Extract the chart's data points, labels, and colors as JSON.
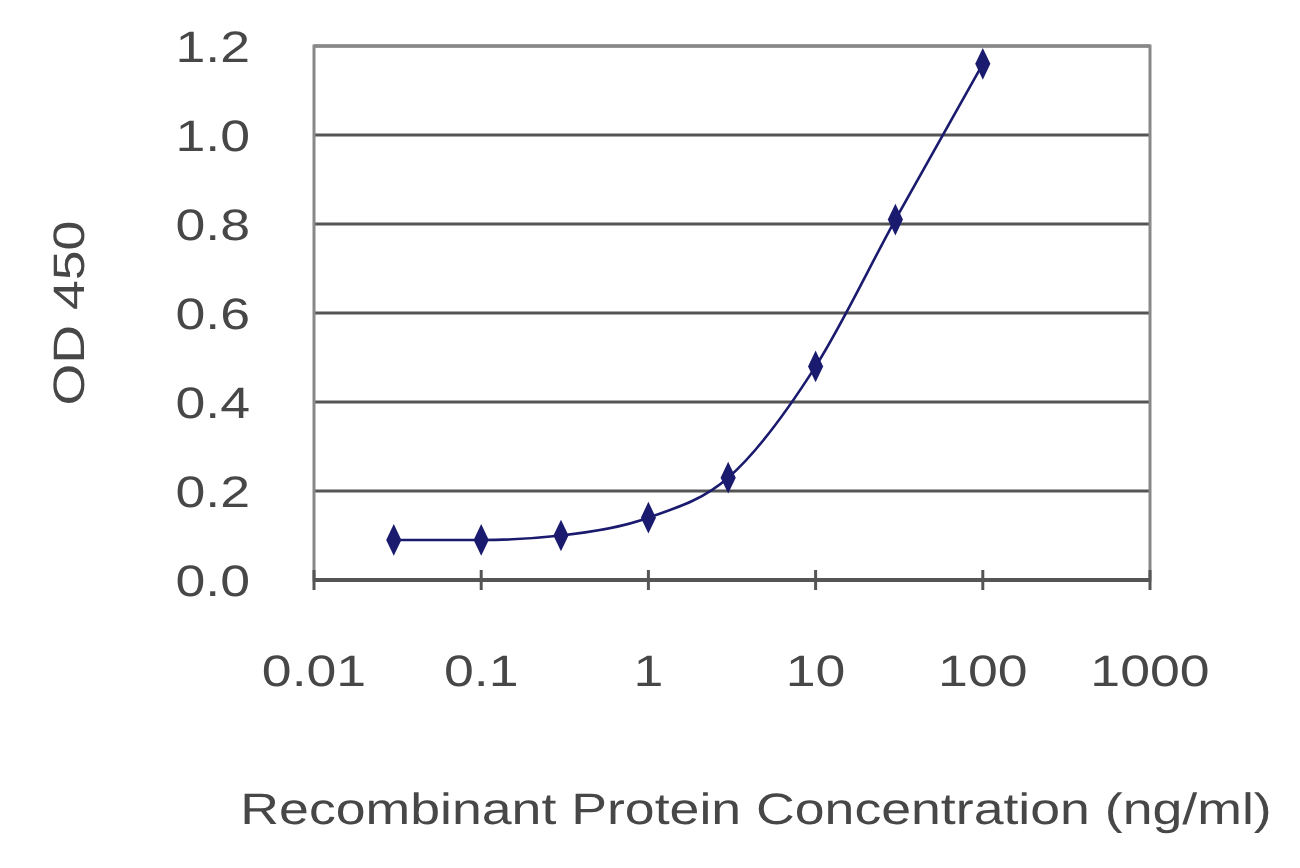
{
  "chart_data": {
    "type": "line",
    "xlabel": "Recombinant Protein Concentration (ng/ml)",
    "ylabel": "OD 450",
    "x": [
      0.03,
      0.1,
      0.3,
      1,
      3,
      10,
      30,
      100
    ],
    "series": [
      {
        "color": "#1a1a6e",
        "values": [
          0.09,
          0.09,
          0.1,
          0.14,
          0.23,
          0.48,
          0.81,
          1.16
        ]
      }
    ],
    "log": "x",
    "xlim": [
      0.01,
      1000
    ],
    "xticks": [
      0.01,
      0.1,
      1,
      10,
      100,
      1000
    ],
    "ylim": [
      0,
      1.2
    ],
    "yticks": [
      {
        "value": 0,
        "label": "0.0"
      },
      0.2,
      0.4,
      0.6,
      0.8,
      {
        "value": 1,
        "label": "1.0"
      },
      1.2
    ],
    "grid": "y",
    "marker": "diamond",
    "line_style": "solid"
  }
}
